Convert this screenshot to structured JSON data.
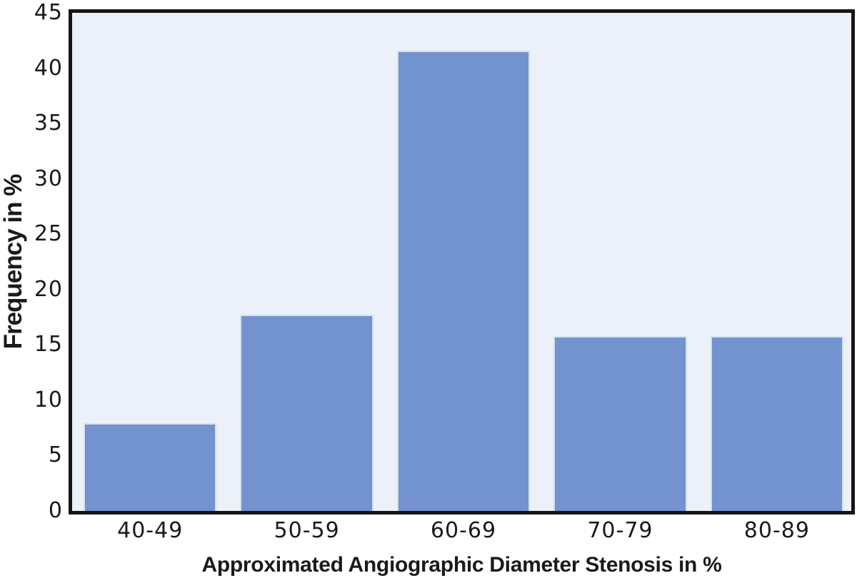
{
  "chart_data": {
    "type": "bar",
    "title": "",
    "categories": [
      "40-49",
      "50-59",
      "60-69",
      "70-79",
      "80-89"
    ],
    "values": [
      7.9,
      17.7,
      41.6,
      15.8,
      15.8
    ],
    "xlabel": "Approximated Angiographic Diameter Stenosis in %",
    "ylabel": "Frequency in %",
    "ylim": [
      0,
      45
    ],
    "yticks": [
      0,
      5,
      10,
      15,
      20,
      25,
      30,
      35,
      40,
      45
    ],
    "grid": false,
    "legend_position": "none",
    "colors": {
      "bar_fill": "#7292D0",
      "bar_edge": "#D8DFEC",
      "plot_bg": "#ECF1F9",
      "plot_border": "#151515",
      "text": "#1A1A1A"
    }
  }
}
